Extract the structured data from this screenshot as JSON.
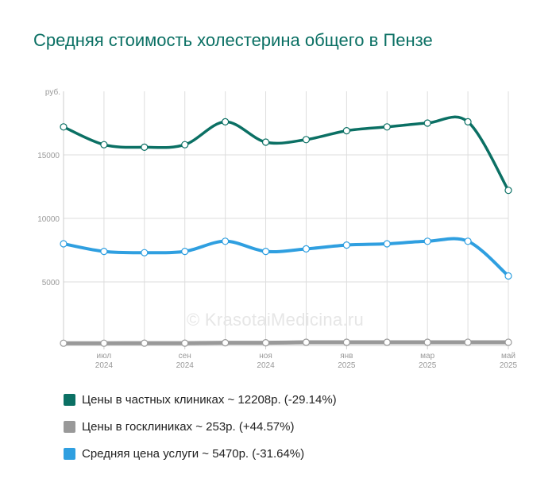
{
  "title": "Средняя стоимость холестерина общего в Пензе",
  "watermark": "© KrasotaiMedicina.ru",
  "legend": [
    {
      "label": "Цены в частных клиниках ~ 12208р. (-29.14%)",
      "color": "#0b7064"
    },
    {
      "label": "Цены в госклиниках ~ 253р. (+44.57%)",
      "color": "#999999"
    },
    {
      "label": "Средняя цена услуги ~ 5470р. (-31.64%)",
      "color": "#2f9fe0"
    }
  ],
  "chart_data": {
    "type": "line",
    "ylabel": "руб.",
    "ylim": [
      0,
      20000
    ],
    "y_ticks": [
      5000,
      10000,
      15000
    ],
    "x_ticks": [
      {
        "i": 1,
        "month": "июл",
        "year": "2024"
      },
      {
        "i": 3,
        "month": "сен",
        "year": "2024"
      },
      {
        "i": 5,
        "month": "ноя",
        "year": "2024"
      },
      {
        "i": 7,
        "month": "янв",
        "year": "2025"
      },
      {
        "i": 9,
        "month": "мар",
        "year": "2025"
      },
      {
        "i": 11,
        "month": "май",
        "year": "2025"
      }
    ],
    "x_count": 12,
    "grid": true,
    "series": [
      {
        "name": "Цены в частных клиниках",
        "color": "#0b7064",
        "width": 3.5,
        "values": [
          17200,
          15800,
          15600,
          15800,
          17600,
          16000,
          16200,
          16900,
          17200,
          17500,
          17600,
          12208
        ]
      },
      {
        "name": "Цены в госклиниках",
        "color": "#999999",
        "width": 5,
        "values": [
          175,
          175,
          180,
          180,
          210,
          210,
          250,
          250,
          250,
          250,
          253,
          253
        ]
      },
      {
        "name": "Средняя цена услуги",
        "color": "#2f9fe0",
        "width": 4,
        "values": [
          8000,
          7400,
          7300,
          7400,
          8200,
          7400,
          7600,
          7900,
          8000,
          8200,
          8200,
          5470
        ]
      }
    ]
  }
}
